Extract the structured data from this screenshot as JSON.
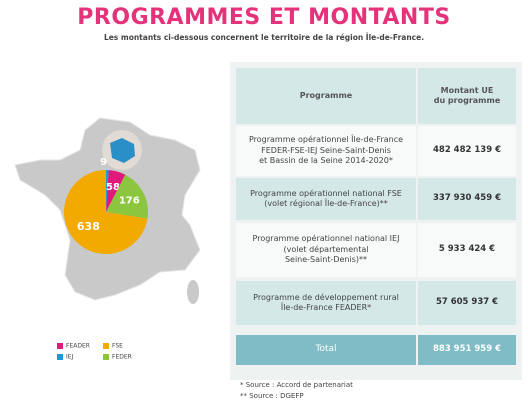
{
  "header": {
    "title": "PROGRAMMES ET MONTANTS",
    "subtitle": "Les montants ci-dessous concernent le territoire de la région Île-de-France."
  },
  "chart_data": {
    "type": "pie",
    "categories": [
      "IEJ",
      "FEADER",
      "FEDER",
      "FSE"
    ],
    "values": [
      9,
      58,
      176,
      638
    ],
    "colors": [
      "#1e9ad6",
      "#e0197d",
      "#8cc63f",
      "#f2a900"
    ]
  },
  "table": {
    "columns": [
      "Programme",
      "Montant UE\ndu programme"
    ],
    "rows": [
      [
        "Programme opérationnel Île-de-France\nFEDER-FSE-IEJ Seine-Saint-Denis\net Bassin de la Seine 2014-2020*",
        "482 482 139 €"
      ],
      [
        "Programme opérationnel national FSE\n(volet régional Île-de-France)**",
        "337 930 459 €"
      ],
      [
        "Programme opérationnel national IEJ\n(volet départemental\nSeine-Saint-Denis)**",
        "5 933 424 €"
      ],
      [
        "Programme de développement rural\nÎle-de-France FEADER*",
        "57 605 937 €"
      ]
    ],
    "total": [
      "Total",
      "883 951 959 €"
    ]
  },
  "notes": [
    "* Source : Accord de partenariat",
    "** Source : DGEFP"
  ]
}
